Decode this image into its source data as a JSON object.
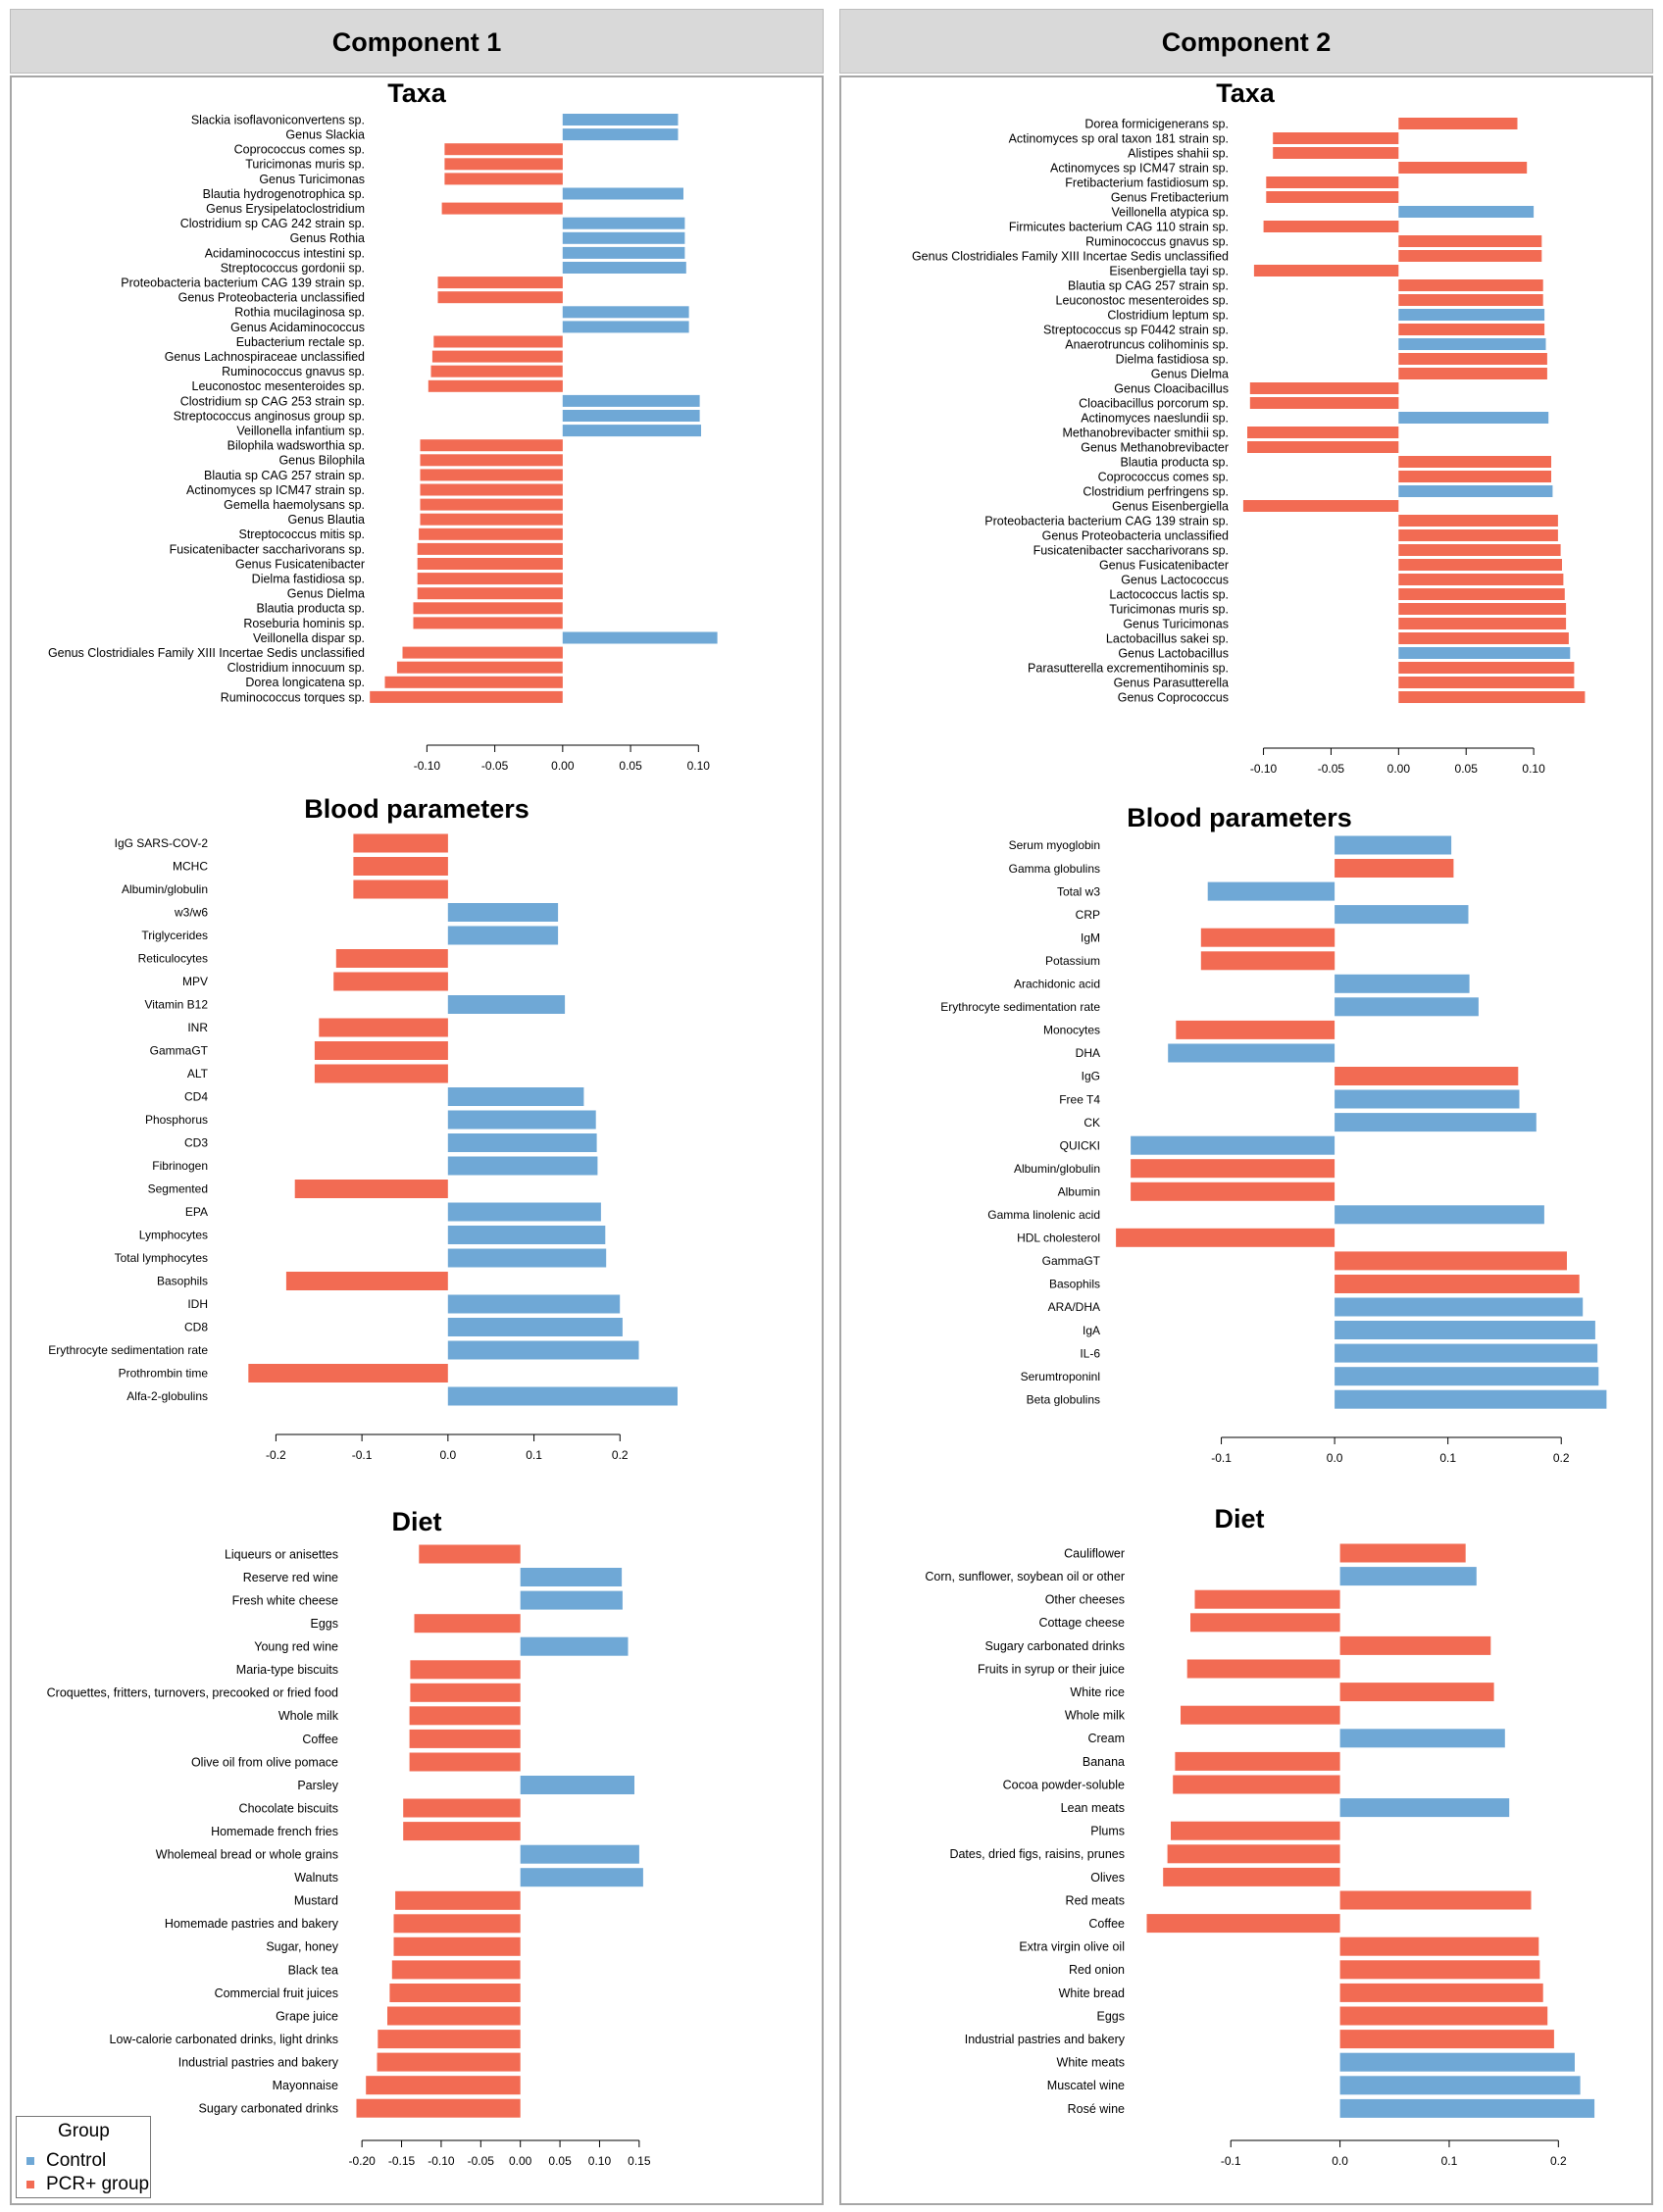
{
  "headers": {
    "component1": "Component 1",
    "component2": "Component 2"
  },
  "legend": {
    "title": "Group",
    "items": [
      {
        "label": "Control",
        "color": "#6fa8d6"
      },
      {
        "label": "PCR+ group",
        "color": "#f26b53"
      }
    ]
  },
  "colors": {
    "Control": "#6fa8d6",
    "PCR": "#f26b53"
  },
  "chart_data": [
    {
      "type": "bar",
      "orientation": "horizontal",
      "panel": "Component 1",
      "title": "Taxa",
      "xlim": [
        -0.14,
        0.12
      ],
      "ticks": [
        -0.1,
        -0.05,
        0.0,
        0.05,
        0.1
      ],
      "tick_labels": [
        "-0.10",
        "-0.05",
        "0.00",
        "0.05",
        "0.10"
      ],
      "categories": [
        "Slackia isoflavoniconvertens sp.",
        "Genus Slackia",
        "Coprococcus comes sp.",
        "Turicimonas muris sp.",
        "Genus Turicimonas",
        "Blautia hydrogenotrophica sp.",
        "Genus Erysipelatoclostridium",
        "Clostridium sp CAG 242 strain sp.",
        "Genus Rothia",
        "Acidaminococcus intestini sp.",
        "Streptococcus gordonii sp.",
        "Proteobacteria bacterium CAG 139 strain sp.",
        "Genus Proteobacteria unclassified",
        "Rothia mucilaginosa sp.",
        "Genus Acidaminococcus",
        "Eubacterium rectale sp.",
        "Genus Lachnospiraceae unclassified",
        "Ruminococcus gnavus sp.",
        "Leuconostoc mesenteroides sp.",
        "Clostridium sp CAG 253 strain sp.",
        "Streptococcus anginosus group sp.",
        "Veillonella infantium sp.",
        "Bilophila wadsworthia sp.",
        "Genus Bilophila",
        "Blautia sp CAG 257 strain sp.",
        "Actinomyces sp ICM47 strain sp.",
        "Gemella haemolysans sp.",
        "Genus Blautia",
        "Streptococcus mitis sp.",
        "Fusicatenibacter saccharivorans sp.",
        "Genus Fusicatenibacter",
        "Dielma fastidiosa sp.",
        "Genus Dielma",
        "Blautia producta sp.",
        "Roseburia hominis sp.",
        "Veillonella dispar sp.",
        "Genus Clostridiales Family XIII Incertae Sedis unclassified",
        "Clostridium innocuum sp.",
        "Dorea longicatena sp.",
        "Ruminococcus torques sp."
      ],
      "values": [
        0.085,
        0.085,
        -0.087,
        -0.087,
        -0.087,
        0.089,
        -0.089,
        0.09,
        0.09,
        0.09,
        0.091,
        -0.092,
        -0.092,
        0.093,
        0.093,
        -0.095,
        -0.096,
        -0.097,
        -0.099,
        0.101,
        0.101,
        0.102,
        -0.105,
        -0.105,
        -0.105,
        -0.105,
        -0.105,
        -0.105,
        -0.106,
        -0.107,
        -0.107,
        -0.107,
        -0.107,
        -0.11,
        -0.11,
        0.114,
        -0.118,
        -0.122,
        -0.131,
        -0.142
      ],
      "groups": [
        "Control",
        "Control",
        "PCR+ group",
        "PCR+ group",
        "PCR+ group",
        "Control",
        "PCR+ group",
        "Control",
        "Control",
        "Control",
        "Control",
        "PCR+ group",
        "PCR+ group",
        "Control",
        "Control",
        "PCR+ group",
        "PCR+ group",
        "PCR+ group",
        "PCR+ group",
        "Control",
        "Control",
        "Control",
        "PCR+ group",
        "PCR+ group",
        "PCR+ group",
        "PCR+ group",
        "PCR+ group",
        "PCR+ group",
        "PCR+ group",
        "PCR+ group",
        "PCR+ group",
        "PCR+ group",
        "PCR+ group",
        "PCR+ group",
        "PCR+ group",
        "Control",
        "PCR+ group",
        "PCR+ group",
        "PCR+ group",
        "PCR+ group"
      ]
    },
    {
      "type": "bar",
      "orientation": "horizontal",
      "panel": "Component 1",
      "title": "Blood parameters",
      "xlim": [
        -0.27,
        0.3
      ],
      "ticks": [
        -0.2,
        -0.1,
        0.0,
        0.1,
        0.2
      ],
      "tick_labels": [
        "-0.2",
        "-0.1",
        "0.0",
        "0.1",
        "0.2"
      ],
      "categories": [
        "IgG SARS-COV-2",
        "MCHC",
        "Albumin/globulin",
        "w3/w6",
        "Triglycerides",
        "Reticulocytes",
        "MPV",
        "Vitamin B12",
        "INR",
        "GammaGT",
        "ALT",
        "CD4",
        "Phosphorus",
        "CD3",
        "Fibrinogen",
        "Segmented",
        "EPA",
        "Lymphocytes",
        "Total lymphocytes",
        "Basophils",
        "IDH",
        "CD8",
        "Erythrocyte sedimentation rate",
        "Prothrombin time",
        "Alfa-2-globulins"
      ],
      "values": [
        -0.11,
        -0.11,
        -0.11,
        0.128,
        0.128,
        -0.13,
        -0.133,
        0.136,
        -0.15,
        -0.155,
        -0.155,
        0.158,
        0.172,
        0.173,
        0.174,
        -0.178,
        0.178,
        0.183,
        0.184,
        -0.188,
        0.2,
        0.203,
        0.222,
        -0.232,
        0.267
      ],
      "groups": [
        "PCR+ group",
        "PCR+ group",
        "PCR+ group",
        "Control",
        "Control",
        "PCR+ group",
        "PCR+ group",
        "Control",
        "PCR+ group",
        "PCR+ group",
        "PCR+ group",
        "Control",
        "Control",
        "Control",
        "Control",
        "PCR+ group",
        "Control",
        "Control",
        "Control",
        "PCR+ group",
        "Control",
        "Control",
        "Control",
        "PCR+ group",
        "Control"
      ]
    },
    {
      "type": "bar",
      "orientation": "horizontal",
      "panel": "Component 1",
      "title": "Diet",
      "xlim": [
        -0.22,
        0.17
      ],
      "ticks": [
        -0.2,
        -0.15,
        -0.1,
        -0.05,
        0.0,
        0.05,
        0.1,
        0.15
      ],
      "tick_labels": [
        "-0.20",
        "-0.15",
        "-0.10",
        "-0.05",
        "0.00",
        "0.05",
        "0.10",
        "0.15"
      ],
      "categories": [
        "Liqueurs or anisettes",
        "Reserve red wine",
        "Fresh white cheese",
        "Eggs",
        "Young red wine",
        "Maria-type biscuits",
        "Croquettes, fritters, turnovers, precooked or fried food",
        "Whole milk",
        "Coffee",
        "Olive oil from olive pomace",
        "Parsley",
        "Chocolate biscuits",
        "Homemade french fries",
        "Wholemeal bread or whole grains",
        "Walnuts",
        "Mustard",
        "Homemade pastries and bakery",
        "Sugar, honey",
        "Black tea",
        "Commercial fruit juices",
        "Grape juice",
        "Low-calorie carbonated drinks, light drinks",
        "Industrial pastries and bakery",
        "Mayonnaise",
        "Sugary carbonated drinks"
      ],
      "values": [
        -0.128,
        0.128,
        0.129,
        -0.134,
        0.136,
        -0.139,
        -0.139,
        -0.14,
        -0.14,
        -0.14,
        0.144,
        -0.148,
        -0.148,
        0.15,
        0.155,
        -0.158,
        -0.16,
        -0.16,
        -0.162,
        -0.165,
        -0.168,
        -0.18,
        -0.181,
        -0.195,
        -0.207
      ],
      "groups": [
        "PCR+ group",
        "Control",
        "Control",
        "PCR+ group",
        "Control",
        "PCR+ group",
        "PCR+ group",
        "PCR+ group",
        "PCR+ group",
        "PCR+ group",
        "Control",
        "PCR+ group",
        "PCR+ group",
        "Control",
        "Control",
        "PCR+ group",
        "PCR+ group",
        "PCR+ group",
        "PCR+ group",
        "PCR+ group",
        "PCR+ group",
        "PCR+ group",
        "PCR+ group",
        "PCR+ group",
        "PCR+ group"
      ]
    },
    {
      "type": "bar",
      "orientation": "horizontal",
      "panel": "Component 2",
      "title": "Taxa",
      "xlim": [
        -0.12,
        0.15
      ],
      "ticks": [
        -0.1,
        -0.05,
        0.0,
        0.05,
        0.1
      ],
      "tick_labels": [
        "-0.10",
        "-0.05",
        "0.00",
        "0.05",
        "0.10"
      ],
      "categories": [
        "Dorea formicigenerans sp.",
        "Actinomyces sp oral taxon 181 strain sp.",
        "Alistipes shahii sp.",
        "Actinomyces sp ICM47 strain sp.",
        "Fretibacterium fastidiosum sp.",
        "Genus Fretibacterium",
        "Veillonella atypica sp.",
        "Firmicutes bacterium CAG 110 strain sp.",
        "Ruminococcus gnavus sp.",
        "Genus Clostridiales Family XIII Incertae Sedis unclassified",
        "Eisenbergiella tayi sp.",
        "Blautia sp CAG 257 strain sp.",
        "Leuconostoc mesenteroides sp.",
        "Clostridium leptum sp.",
        "Streptococcus sp F0442 strain sp.",
        "Anaerotruncus colihominis sp.",
        "Dielma fastidiosa sp.",
        "Genus Dielma",
        "Genus Cloacibacillus",
        "Cloacibacillus porcorum sp.",
        "Actinomyces naeslundii sp.",
        "Methanobrevibacter smithii sp.",
        "Genus Methanobrevibacter",
        "Blautia producta sp.",
        "Coprococcus comes sp.",
        "Clostridium perfringens sp.",
        "Genus Eisenbergiella",
        "Proteobacteria bacterium CAG 139 strain sp.",
        "Genus Proteobacteria unclassified",
        "Fusicatenibacter saccharivorans sp.",
        "Genus Fusicatenibacter",
        "Genus Lactococcus",
        "Lactococcus lactis sp.",
        "Turicimonas muris sp.",
        "Genus Turicimonas",
        "Lactobacillus sakei sp.",
        "Genus Lactobacillus",
        "Parasutterella excrementihominis sp.",
        "Genus Parasutterella",
        "Genus Coprococcus"
      ],
      "values": [
        0.088,
        -0.093,
        -0.093,
        0.095,
        -0.098,
        -0.098,
        0.1,
        -0.1,
        0.106,
        0.106,
        -0.107,
        0.107,
        0.107,
        0.108,
        0.108,
        0.109,
        0.11,
        0.11,
        -0.11,
        -0.11,
        0.111,
        -0.112,
        -0.112,
        0.113,
        0.113,
        0.114,
        -0.115,
        0.118,
        0.118,
        0.12,
        0.121,
        0.122,
        0.123,
        0.124,
        0.124,
        0.126,
        0.127,
        0.13,
        0.13,
        0.138
      ],
      "groups": [
        "PCR+ group",
        "PCR+ group",
        "PCR+ group",
        "PCR+ group",
        "PCR+ group",
        "PCR+ group",
        "Control",
        "PCR+ group",
        "PCR+ group",
        "PCR+ group",
        "PCR+ group",
        "PCR+ group",
        "PCR+ group",
        "Control",
        "PCR+ group",
        "Control",
        "PCR+ group",
        "PCR+ group",
        "PCR+ group",
        "PCR+ group",
        "Control",
        "PCR+ group",
        "PCR+ group",
        "PCR+ group",
        "PCR+ group",
        "Control",
        "PCR+ group",
        "PCR+ group",
        "PCR+ group",
        "PCR+ group",
        "PCR+ group",
        "PCR+ group",
        "PCR+ group",
        "PCR+ group",
        "PCR+ group",
        "PCR+ group",
        "Control",
        "PCR+ group",
        "PCR+ group",
        "PCR+ group"
      ]
    },
    {
      "type": "bar",
      "orientation": "horizontal",
      "panel": "Component 2",
      "title": "Blood parameters",
      "xlim": [
        -0.2,
        0.25
      ],
      "ticks": [
        -0.1,
        0.0,
        0.1,
        0.2
      ],
      "tick_labels": [
        "-0.1",
        "0.0",
        "0.1",
        "0.2"
      ],
      "categories": [
        "Serum myoglobin",
        "Gamma globulins",
        "Total w3",
        "CRP",
        "IgM",
        "Potassium",
        "Arachidonic acid",
        "Erythrocyte sedimentation rate",
        "Monocytes",
        "DHA",
        "IgG",
        "Free T4",
        "CK",
        "QUICKI",
        "Albumin/globulin",
        "Albumin",
        "Gamma linolenic acid",
        "HDL cholesterol",
        "GammaGT",
        "Basophils",
        "ARA/DHA",
        "IgA",
        "IL-6",
        "Serumtroponinl",
        "Beta globulins"
      ],
      "values": [
        0.103,
        0.105,
        -0.112,
        0.118,
        -0.118,
        -0.118,
        0.119,
        0.127,
        -0.14,
        -0.147,
        0.162,
        0.163,
        0.178,
        -0.18,
        -0.18,
        -0.18,
        0.185,
        -0.193,
        0.205,
        0.216,
        0.219,
        0.23,
        0.232,
        0.233,
        0.24
      ],
      "groups": [
        "Control",
        "PCR+ group",
        "Control",
        "Control",
        "PCR+ group",
        "PCR+ group",
        "Control",
        "Control",
        "PCR+ group",
        "Control",
        "PCR+ group",
        "Control",
        "Control",
        "Control",
        "PCR+ group",
        "PCR+ group",
        "Control",
        "PCR+ group",
        "PCR+ group",
        "PCR+ group",
        "Control",
        "Control",
        "Control",
        "Control",
        "Control"
      ]
    },
    {
      "type": "bar",
      "orientation": "horizontal",
      "panel": "Component 2",
      "title": "Diet",
      "xlim": [
        -0.19,
        0.25
      ],
      "ticks": [
        -0.1,
        0.0,
        0.1,
        0.2
      ],
      "tick_labels": [
        "-0.1",
        "0.0",
        "0.1",
        "0.2"
      ],
      "categories": [
        "Cauliflower",
        "Corn, sunflower, soybean oil or other",
        "Other cheeses",
        "Cottage cheese",
        "Sugary carbonated drinks",
        "Fruits in syrup or their juice",
        "White rice",
        "Whole milk",
        "Cream",
        "Banana",
        "Cocoa powder-soluble",
        "Lean meats",
        "Plums",
        "Dates, dried figs, raisins, prunes",
        "Olives",
        "Red meats",
        "Coffee",
        "Extra virgin olive oil",
        "Red onion",
        "White bread",
        "Eggs",
        "Industrial pastries and bakery",
        "White meats",
        "Muscatel wine",
        "Rosé wine"
      ],
      "values": [
        0.115,
        0.125,
        -0.133,
        -0.137,
        0.138,
        -0.14,
        0.141,
        -0.146,
        0.151,
        -0.151,
        -0.153,
        0.155,
        -0.155,
        -0.158,
        -0.162,
        0.175,
        -0.177,
        0.182,
        0.183,
        0.186,
        0.19,
        0.196,
        0.215,
        0.22,
        0.233
      ],
      "groups": [
        "PCR+ group",
        "Control",
        "PCR+ group",
        "PCR+ group",
        "PCR+ group",
        "PCR+ group",
        "PCR+ group",
        "PCR+ group",
        "Control",
        "PCR+ group",
        "PCR+ group",
        "Control",
        "PCR+ group",
        "PCR+ group",
        "PCR+ group",
        "PCR+ group",
        "PCR+ group",
        "PCR+ group",
        "PCR+ group",
        "PCR+ group",
        "PCR+ group",
        "PCR+ group",
        "Control",
        "Control",
        "Control"
      ]
    }
  ]
}
